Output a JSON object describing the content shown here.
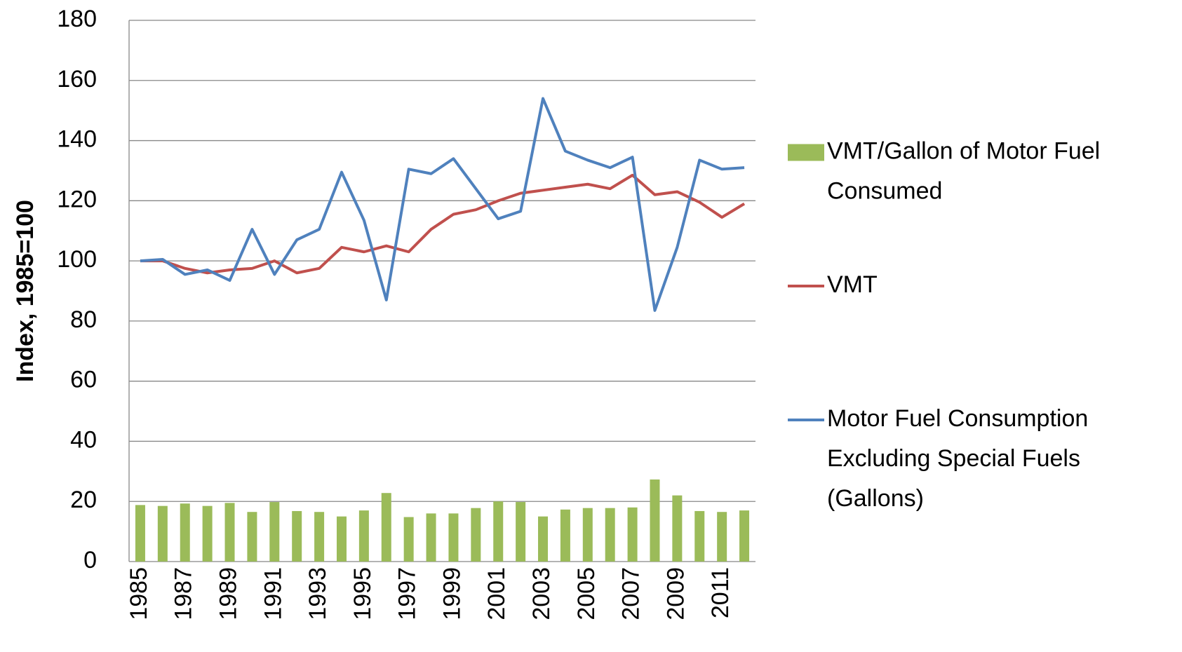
{
  "chart_data": {
    "type": "bar",
    "categories": [
      "1985",
      null,
      "1987",
      null,
      "1989",
      null,
      "1991",
      null,
      "1993",
      null,
      "1995",
      null,
      "1997",
      null,
      "1999",
      null,
      "2001",
      null,
      "2003",
      null,
      "2005",
      null,
      "2007",
      null,
      "2009",
      null,
      "2011",
      null
    ],
    "y_axis_label": "Index, 1985=100",
    "ylim": [
      0,
      180
    ],
    "yticks": [
      0,
      20,
      40,
      60,
      80,
      100,
      120,
      140,
      160,
      180
    ],
    "grid": true,
    "series": [
      {
        "name": "VMT/Gallon of Motor Fuel Consumed",
        "type": "bar",
        "color": "#9bbb59",
        "values": [
          18.8,
          18.5,
          19.3,
          18.5,
          19.5,
          16.5,
          19.8,
          16.8,
          16.5,
          15,
          17,
          22.8,
          14.8,
          16,
          16,
          17.8,
          20,
          19.8,
          15,
          17.3,
          17.8,
          17.8,
          18,
          27.3,
          22,
          16.8,
          16.5,
          17
        ]
      },
      {
        "name": "VMT",
        "type": "line",
        "color": "#c0504d",
        "values": [
          100,
          100,
          97.5,
          96,
          97,
          97.5,
          100,
          96,
          97.5,
          104.5,
          103,
          105,
          103,
          110.5,
          115.5,
          117,
          120,
          122.5,
          123.5,
          124.5,
          125.5,
          124,
          128.5,
          122,
          123,
          119.5,
          114.5,
          119
        ]
      },
      {
        "name": "Motor Fuel Consumption Excluding Special Fuels (Gallons)",
        "type": "line",
        "color": "#4f81bd",
        "values": [
          100,
          100.5,
          95.5,
          97,
          93.5,
          110.5,
          95.5,
          107,
          110.5,
          129.5,
          113.5,
          87,
          130.5,
          129,
          134,
          124,
          114,
          116.5,
          154,
          136.5,
          133.5,
          131,
          134.5,
          83.5,
          104.5,
          133.5,
          130.5,
          131
        ]
      }
    ]
  }
}
